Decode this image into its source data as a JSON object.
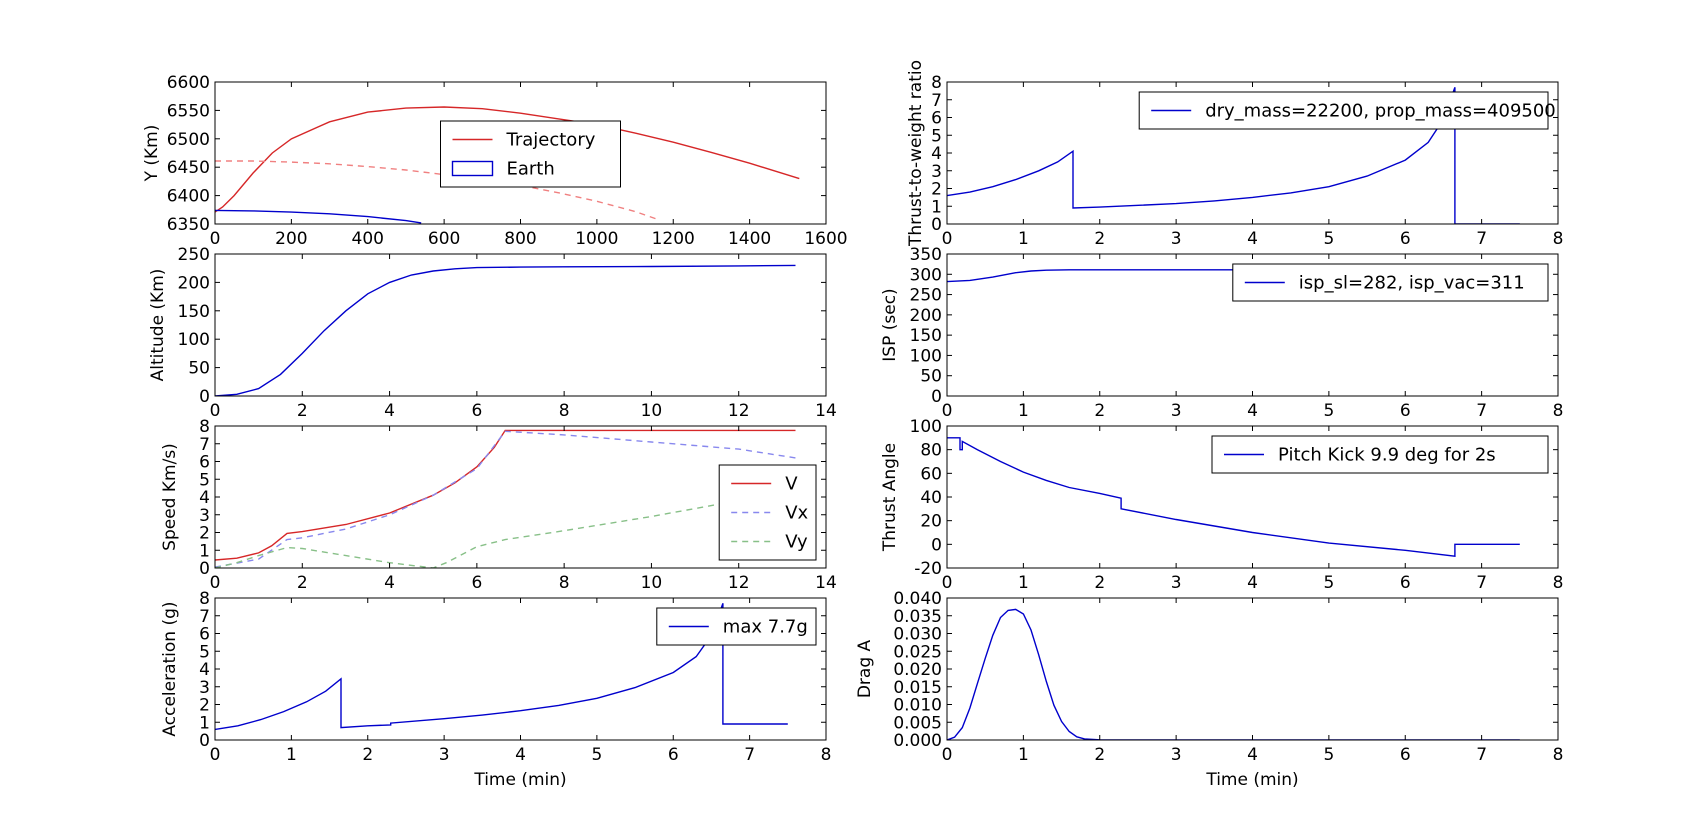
{
  "chart_data": [
    {
      "id": "trajectory",
      "type": "line",
      "title": "",
      "xlabel": "",
      "ylabel": "Y (Km)",
      "xlim": [
        0,
        1600
      ],
      "ylim": [
        6350,
        6600
      ],
      "xticks": [
        0,
        200,
        400,
        600,
        800,
        1000,
        1200,
        1400,
        1600
      ],
      "yticks": [
        6350,
        6400,
        6450,
        6500,
        6550,
        6600
      ],
      "legend": {
        "position": "upper-center",
        "entries": [
          "Trajectory",
          "Earth"
        ]
      },
      "series": [
        {
          "name": "Trajectory",
          "color": "#d62728",
          "style": "solid",
          "points": [
            [
              0,
              6371
            ],
            [
              20,
              6380
            ],
            [
              50,
              6400
            ],
            [
              100,
              6440
            ],
            [
              150,
              6475
            ],
            [
              200,
              6500
            ],
            [
              300,
              6530
            ],
            [
              400,
              6547
            ],
            [
              500,
              6554
            ],
            [
              600,
              6556
            ],
            [
              700,
              6553
            ],
            [
              800,
              6545
            ],
            [
              900,
              6535
            ],
            [
              1000,
              6525
            ],
            [
              1100,
              6510
            ],
            [
              1200,
              6494
            ],
            [
              1300,
              6476
            ],
            [
              1400,
              6457
            ],
            [
              1530,
              6430
            ]
          ]
        },
        {
          "name": "Earth",
          "color": "#0000cc",
          "style": "solid",
          "points": [
            [
              0,
              6374
            ],
            [
              100,
              6373
            ],
            [
              200,
              6371
            ],
            [
              300,
              6368
            ],
            [
              400,
              6363
            ],
            [
              500,
              6356
            ],
            [
              540,
              6352
            ]
          ]
        },
        {
          "name": "",
          "color": "#f08080",
          "style": "dashed",
          "points": [
            [
              0,
              6461
            ],
            [
              100,
              6461
            ],
            [
              200,
              6459
            ],
            [
              300,
              6456
            ],
            [
              400,
              6451
            ],
            [
              500,
              6445
            ],
            [
              600,
              6437
            ],
            [
              700,
              6428
            ],
            [
              800,
              6418
            ],
            [
              900,
              6405
            ],
            [
              1000,
              6390
            ],
            [
              1100,
              6372
            ],
            [
              1160,
              6358
            ]
          ]
        }
      ]
    },
    {
      "id": "altitude",
      "type": "line",
      "title": "",
      "xlabel": "",
      "ylabel": "Altitude (Km)",
      "xlim": [
        0,
        14
      ],
      "ylim": [
        0,
        250
      ],
      "xticks": [
        0,
        2,
        4,
        6,
        8,
        10,
        12,
        14
      ],
      "yticks": [
        0,
        50,
        100,
        150,
        200,
        250
      ],
      "series": [
        {
          "name": "",
          "color": "#0000cc",
          "style": "solid",
          "points": [
            [
              0,
              0
            ],
            [
              0.5,
              3
            ],
            [
              1,
              13
            ],
            [
              1.5,
              38
            ],
            [
              2,
              75
            ],
            [
              2.5,
              115
            ],
            [
              3,
              150
            ],
            [
              3.5,
              180
            ],
            [
              4,
              200
            ],
            [
              4.5,
              213
            ],
            [
              5,
              220
            ],
            [
              5.5,
              224
            ],
            [
              6,
              226
            ],
            [
              7,
              227
            ],
            [
              8,
              227.5
            ],
            [
              10,
              228
            ],
            [
              12,
              229
            ],
            [
              13.3,
              230
            ]
          ]
        }
      ]
    },
    {
      "id": "speed",
      "type": "line",
      "title": "",
      "xlabel": "",
      "ylabel": "Speed Km/s)",
      "xlim": [
        0,
        14
      ],
      "ylim": [
        0,
        8
      ],
      "xticks": [
        0,
        2,
        4,
        6,
        8,
        10,
        12,
        14
      ],
      "yticks": [
        0,
        1,
        2,
        3,
        4,
        5,
        6,
        7,
        8
      ],
      "legend": {
        "position": "center-right",
        "entries": [
          "V",
          "Vx",
          "Vy"
        ]
      },
      "series": [
        {
          "name": "V",
          "color": "#d62728",
          "style": "solid",
          "points": [
            [
              0,
              0.45
            ],
            [
              0.5,
              0.55
            ],
            [
              1,
              0.85
            ],
            [
              1.3,
              1.25
            ],
            [
              1.65,
              1.95
            ],
            [
              2,
              2.05
            ],
            [
              3,
              2.45
            ],
            [
              4,
              3.1
            ],
            [
              5,
              4.1
            ],
            [
              5.5,
              4.8
            ],
            [
              6,
              5.7
            ],
            [
              6.4,
              6.8
            ],
            [
              6.65,
              7.75
            ],
            [
              8,
              7.75
            ],
            [
              10,
              7.75
            ],
            [
              12,
              7.75
            ],
            [
              13.3,
              7.75
            ]
          ]
        },
        {
          "name": "Vx",
          "color": "#8888ee",
          "style": "dashed",
          "points": [
            [
              0,
              0.05
            ],
            [
              1,
              0.5
            ],
            [
              1.65,
              1.6
            ],
            [
              2,
              1.7
            ],
            [
              3,
              2.2
            ],
            [
              4,
              3.0
            ],
            [
              5,
              4.1
            ],
            [
              6,
              5.6
            ],
            [
              6.65,
              7.7
            ],
            [
              8,
              7.5
            ],
            [
              10,
              7.1
            ],
            [
              12,
              6.7
            ],
            [
              13.3,
              6.2
            ]
          ]
        },
        {
          "name": "Vy",
          "color": "#88c088",
          "style": "dashed",
          "points": [
            [
              0,
              0
            ],
            [
              0.5,
              0.3
            ],
            [
              1,
              0.7
            ],
            [
              1.65,
              1.15
            ],
            [
              2,
              1.1
            ],
            [
              3,
              0.7
            ],
            [
              4,
              0.3
            ],
            [
              5,
              0
            ],
            [
              5.3,
              0.3
            ],
            [
              6,
              1.2
            ],
            [
              6.65,
              1.6
            ],
            [
              8,
              2.1
            ],
            [
              10,
              2.9
            ],
            [
              12,
              3.8
            ],
            [
              13.3,
              4.3
            ]
          ]
        }
      ]
    },
    {
      "id": "acceleration",
      "type": "line",
      "title": "",
      "xlabel": "Time (min)",
      "ylabel": "Acceleration (g)",
      "xlim": [
        0,
        8
      ],
      "ylim": [
        0,
        8
      ],
      "xticks": [
        0,
        1,
        2,
        3,
        4,
        5,
        6,
        7,
        8
      ],
      "yticks": [
        0,
        1,
        2,
        3,
        4,
        5,
        6,
        7,
        8
      ],
      "legend": {
        "position": "upper-right",
        "entries": [
          "max 7.7g"
        ]
      },
      "series": [
        {
          "name": "max 7.7g",
          "color": "#0000cc",
          "style": "solid",
          "points": [
            [
              0,
              0.6
            ],
            [
              0.3,
              0.8
            ],
            [
              0.6,
              1.15
            ],
            [
              0.9,
              1.6
            ],
            [
              1.2,
              2.15
            ],
            [
              1.45,
              2.75
            ],
            [
              1.65,
              3.45
            ],
            [
              1.65,
              0.7
            ],
            [
              2.0,
              0.8
            ],
            [
              2.3,
              0.85
            ],
            [
              2.3,
              0.95
            ],
            [
              3,
              1.2
            ],
            [
              3.5,
              1.4
            ],
            [
              4,
              1.65
            ],
            [
              4.5,
              1.95
            ],
            [
              5,
              2.35
            ],
            [
              5.5,
              2.95
            ],
            [
              6,
              3.8
            ],
            [
              6.3,
              4.7
            ],
            [
              6.5,
              5.9
            ],
            [
              6.65,
              7.7
            ],
            [
              6.65,
              0.9
            ],
            [
              7.5,
              0.9
            ]
          ]
        }
      ]
    },
    {
      "id": "thrust-to-weight",
      "type": "line",
      "title": "",
      "xlabel": "",
      "ylabel": "Thrust-to-weight ratio",
      "xlim": [
        0,
        8
      ],
      "ylim": [
        0,
        8
      ],
      "xticks": [
        0,
        1,
        2,
        3,
        4,
        5,
        6,
        7,
        8
      ],
      "yticks": [
        0,
        1,
        2,
        3,
        4,
        5,
        6,
        7,
        8
      ],
      "legend": {
        "position": "upper-right",
        "entries": [
          "dry_mass=22200, prop_mass=409500"
        ]
      },
      "series": [
        {
          "name": "dry_mass=22200, prop_mass=409500",
          "color": "#0000cc",
          "style": "solid",
          "points": [
            [
              0,
              1.6
            ],
            [
              0.3,
              1.8
            ],
            [
              0.6,
              2.1
            ],
            [
              0.9,
              2.5
            ],
            [
              1.2,
              3.0
            ],
            [
              1.45,
              3.5
            ],
            [
              1.65,
              4.1
            ],
            [
              1.65,
              0.9
            ],
            [
              2,
              0.95
            ],
            [
              3,
              1.15
            ],
            [
              3.5,
              1.3
            ],
            [
              4,
              1.5
            ],
            [
              4.5,
              1.75
            ],
            [
              5,
              2.1
            ],
            [
              5.5,
              2.7
            ],
            [
              6,
              3.6
            ],
            [
              6.3,
              4.6
            ],
            [
              6.5,
              5.9
            ],
            [
              6.65,
              7.7
            ],
            [
              6.65,
              0
            ],
            [
              7.5,
              0
            ]
          ]
        }
      ]
    },
    {
      "id": "isp",
      "type": "line",
      "title": "",
      "xlabel": "",
      "ylabel": "ISP (sec)",
      "xlim": [
        0,
        8
      ],
      "ylim": [
        0,
        350
      ],
      "xticks": [
        0,
        1,
        2,
        3,
        4,
        5,
        6,
        7,
        8
      ],
      "yticks": [
        0,
        50,
        100,
        150,
        200,
        250,
        300,
        350
      ],
      "legend": {
        "position": "upper-right",
        "entries": [
          "isp_sl=282, isp_vac=311"
        ]
      },
      "series": [
        {
          "name": "isp_sl=282, isp_vac=311",
          "color": "#0000cc",
          "style": "solid",
          "points": [
            [
              0,
              282
            ],
            [
              0.3,
              285
            ],
            [
              0.6,
              293
            ],
            [
              0.9,
              304
            ],
            [
              1.1,
              308
            ],
            [
              1.3,
              310
            ],
            [
              1.6,
              311
            ],
            [
              2,
              311
            ],
            [
              4,
              311
            ],
            [
              6,
              311
            ],
            [
              6.65,
              311
            ]
          ]
        }
      ]
    },
    {
      "id": "thrust-angle",
      "type": "line",
      "title": "",
      "xlabel": "",
      "ylabel": "Thrust Angle",
      "xlim": [
        0,
        8
      ],
      "ylim": [
        -20,
        100
      ],
      "xticks": [
        0,
        1,
        2,
        3,
        4,
        5,
        6,
        7,
        8
      ],
      "yticks": [
        -20,
        0,
        20,
        40,
        60,
        80,
        100
      ],
      "legend": {
        "position": "upper-right",
        "entries": [
          "Pitch Kick 9.9 deg for 2s"
        ]
      },
      "series": [
        {
          "name": "Pitch Kick 9.9 deg for 2s",
          "color": "#0000cc",
          "style": "solid",
          "points": [
            [
              0,
              90
            ],
            [
              0.17,
              90
            ],
            [
              0.17,
              80
            ],
            [
              0.2,
              80
            ],
            [
              0.2,
              87
            ],
            [
              0.4,
              80
            ],
            [
              0.7,
              70
            ],
            [
              1,
              61
            ],
            [
              1.3,
              54
            ],
            [
              1.6,
              48
            ],
            [
              2,
              43
            ],
            [
              2.28,
              39
            ],
            [
              2.28,
              30
            ],
            [
              3,
              21
            ],
            [
              4,
              10
            ],
            [
              5,
              1
            ],
            [
              6,
              -5
            ],
            [
              6.65,
              -10
            ],
            [
              6.65,
              0
            ],
            [
              7.5,
              0
            ]
          ]
        }
      ]
    },
    {
      "id": "drag",
      "type": "line",
      "title": "",
      "xlabel": "Time (min)",
      "ylabel": "Drag A",
      "xlim": [
        0,
        8
      ],
      "ylim": [
        0,
        0.04
      ],
      "xticks": [
        0,
        1,
        2,
        3,
        4,
        5,
        6,
        7,
        8
      ],
      "yticks": [
        0.0,
        0.005,
        0.01,
        0.015,
        0.02,
        0.025,
        0.03,
        0.035,
        0.04
      ],
      "ytick_decimals": 3,
      "series": [
        {
          "name": "",
          "color": "#0000cc",
          "style": "solid",
          "points": [
            [
              0,
              0
            ],
            [
              0.1,
              0.0008
            ],
            [
              0.2,
              0.0035
            ],
            [
              0.3,
              0.009
            ],
            [
              0.4,
              0.016
            ],
            [
              0.5,
              0.023
            ],
            [
              0.6,
              0.0295
            ],
            [
              0.7,
              0.0345
            ],
            [
              0.8,
              0.0365
            ],
            [
              0.9,
              0.0368
            ],
            [
              1.0,
              0.0355
            ],
            [
              1.1,
              0.031
            ],
            [
              1.2,
              0.024
            ],
            [
              1.3,
              0.0165
            ],
            [
              1.4,
              0.0098
            ],
            [
              1.5,
              0.0052
            ],
            [
              1.6,
              0.0024
            ],
            [
              1.7,
              0.0009
            ],
            [
              1.8,
              0.0003
            ],
            [
              2,
              5e-05
            ],
            [
              3,
              0
            ],
            [
              5,
              0
            ],
            [
              7.5,
              0
            ]
          ]
        }
      ]
    }
  ]
}
